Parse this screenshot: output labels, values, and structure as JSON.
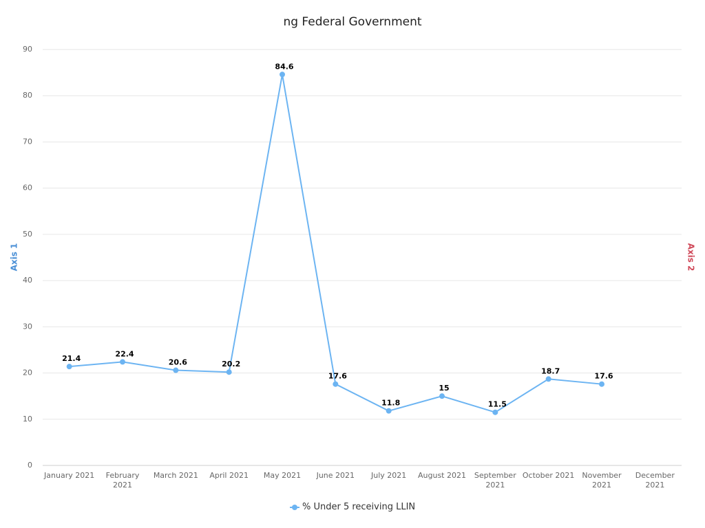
{
  "chart_data": {
    "type": "line",
    "title": "ng Federal Government",
    "y_label": "Axis 1",
    "y2_label": "Axis 2",
    "categories": [
      "January 2021",
      "February 2021",
      "March 2021",
      "April 2021",
      "May 2021",
      "June 2021",
      "July 2021",
      "August 2021",
      "September 2021",
      "October 2021",
      "November 2021",
      "December 2021"
    ],
    "series": [
      {
        "name": "% Under 5 receiving LLIN",
        "color": "#6cb4f2",
        "values": [
          21.4,
          22.4,
          20.6,
          20.2,
          84.6,
          17.6,
          11.8,
          15,
          11.5,
          18.7,
          17.6,
          null
        ]
      }
    ],
    "ylim": [
      0,
      90
    ],
    "yticks": [
      0,
      10,
      20,
      30,
      40,
      50,
      60,
      70,
      80,
      90
    ],
    "grid": true
  }
}
